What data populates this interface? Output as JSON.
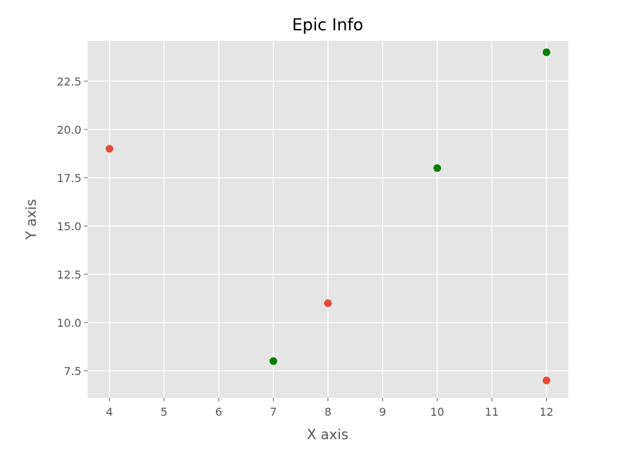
{
  "chart_data": {
    "type": "scatter",
    "title": "Epic Info",
    "xlabel": "X axis",
    "ylabel": "Y axis",
    "xlim": [
      3.6,
      12.4
    ],
    "ylim": [
      6.1,
      24.6
    ],
    "xticks": [
      4,
      5,
      6,
      7,
      8,
      9,
      10,
      11,
      12
    ],
    "xtick_labels": [
      "4",
      "5",
      "6",
      "7",
      "8",
      "9",
      "10",
      "11",
      "12"
    ],
    "yticks": [
      7.5,
      10.0,
      12.5,
      15.0,
      17.5,
      20.0,
      22.5
    ],
    "ytick_labels": [
      "7.5",
      "10.0",
      "12.5",
      "15.0",
      "17.5",
      "20.0",
      "22.5"
    ],
    "grid": true,
    "series": [
      {
        "color": "#e24a33",
        "x": [
          4,
          8,
          12
        ],
        "y": [
          19,
          11,
          7
        ]
      },
      {
        "color": "#008000",
        "x": [
          7,
          10,
          12
        ],
        "y": [
          8,
          18,
          24
        ]
      }
    ]
  },
  "style": {
    "plot_background": "#e5e5e5",
    "grid_color": "#ffffff"
  }
}
